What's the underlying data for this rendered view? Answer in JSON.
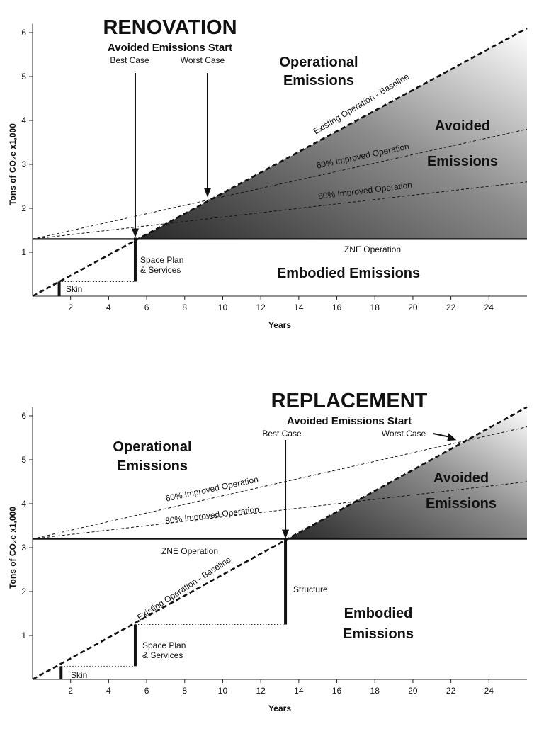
{
  "chart_data": [
    {
      "type": "line",
      "title": "RENOVATION",
      "subtitle": "Avoided Emissions Start",
      "xlabel": "Years",
      "ylabel": "Tons of CO₂e x1,000",
      "xlim": [
        0,
        26
      ],
      "ylim": [
        0,
        6.2
      ],
      "x_ticks": [
        "2",
        "4",
        "6",
        "8",
        "10",
        "12",
        "14",
        "16",
        "18",
        "20",
        "22",
        "24"
      ],
      "y_ticks": [
        "1",
        "2",
        "3",
        "4",
        "5",
        "6"
      ],
      "series": [
        {
          "name": "Existing Operation - Baseline",
          "x": [
            0,
            26
          ],
          "y": [
            0.0,
            6.1
          ]
        },
        {
          "name": "60% Improved Operation",
          "x": [
            0,
            26
          ],
          "y": [
            1.3,
            3.8
          ]
        },
        {
          "name": "80% Improved Operation",
          "x": [
            0,
            26
          ],
          "y": [
            1.3,
            2.6
          ]
        },
        {
          "name": "ZNE Operation",
          "x": [
            0,
            26
          ],
          "y": [
            1.3,
            1.3
          ]
        }
      ],
      "embodied_steps": [
        {
          "label": "Skin",
          "x": 1.4,
          "y_from": 0.0,
          "y_to": 0.33
        },
        {
          "label": "Space Plan & Services",
          "x": 5.4,
          "y_from": 0.33,
          "y_to": 1.33
        }
      ],
      "markers": [
        {
          "label": "Best Case",
          "x": 5.4,
          "y": 1.33
        },
        {
          "label": "Worst Case",
          "x": 9.2,
          "y": 2.25
        }
      ],
      "region_labels": {
        "operational": "Operational Emissions",
        "avoided": "Avoided Emissions",
        "embodied": "Embodied Emissions"
      }
    },
    {
      "type": "line",
      "title": "REPLACEMENT",
      "subtitle": "Avoided Emissions Start",
      "xlabel": "Years",
      "ylabel": "Tons of CO₂e x1,000",
      "xlim": [
        0,
        26
      ],
      "ylim": [
        0,
        6.2
      ],
      "x_ticks": [
        "2",
        "4",
        "6",
        "8",
        "10",
        "12",
        "14",
        "16",
        "18",
        "20",
        "22",
        "24"
      ],
      "y_ticks": [
        "1",
        "2",
        "3",
        "4",
        "5",
        "6"
      ],
      "series": [
        {
          "name": "Existing Operation - Baseline",
          "x": [
            0,
            26
          ],
          "y": [
            0.0,
            6.2
          ]
        },
        {
          "name": "60% Improved Operation",
          "x": [
            0,
            26
          ],
          "y": [
            3.2,
            5.75
          ]
        },
        {
          "name": "80% Improved Operation",
          "x": [
            0,
            26
          ],
          "y": [
            3.2,
            4.5
          ]
        },
        {
          "name": "ZNE Operation",
          "x": [
            0,
            26
          ],
          "y": [
            3.2,
            3.2
          ]
        }
      ],
      "embodied_steps": [
        {
          "label": "Skin",
          "x": 1.5,
          "y_from": 0.0,
          "y_to": 0.3
        },
        {
          "label": "Space Plan & Services",
          "x": 5.4,
          "y_from": 0.3,
          "y_to": 1.25
        },
        {
          "label": "Structure",
          "x": 13.3,
          "y_from": 1.25,
          "y_to": 3.2
        }
      ],
      "markers": [
        {
          "label": "Best Case",
          "x": 13.3,
          "y": 3.2
        },
        {
          "label": "Worst Case",
          "x": 22.4,
          "y": 5.4
        }
      ],
      "region_labels": {
        "operational": "Operational Emissions",
        "avoided": "Avoided Emissions",
        "embodied": "Embodied Emissions"
      }
    }
  ]
}
